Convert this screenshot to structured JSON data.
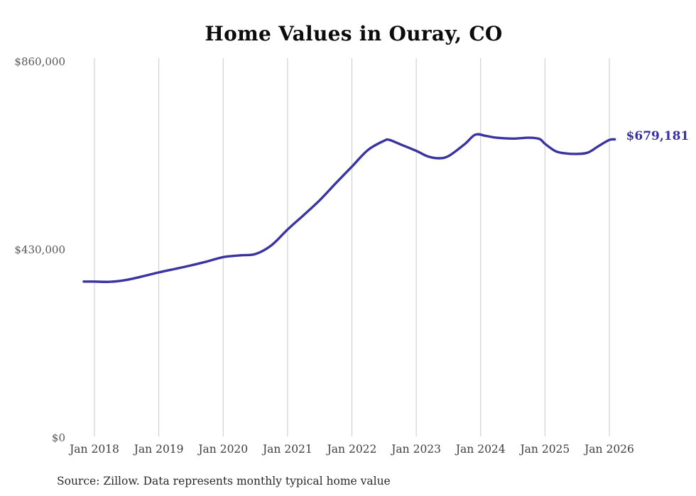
{
  "title": "Home Values in Ouray, CO",
  "source_note": "Source: Zillow. Data represents monthly typical home value",
  "colors": {
    "line": "#3a34a3",
    "grid": "#c9c9c9",
    "end_label": "#38329f",
    "title_text": "#0c0c0c",
    "axis_text": "#3e3e3e"
  },
  "chart_data": {
    "type": "line",
    "title": "Home Values in Ouray, CO",
    "xlabel": "",
    "ylabel": "",
    "ylim": [
      0,
      860000
    ],
    "grid": "vertical-only",
    "legend": "none",
    "x_ticks": [
      "Jan 2018",
      "Jan 2019",
      "Jan 2020",
      "Jan 2021",
      "Jan 2022",
      "Jan 2023",
      "Jan 2024",
      "Jan 2025",
      "Jan 2026"
    ],
    "y_ticks": [
      {
        "label": "$860,000",
        "value": 860000
      },
      {
        "label": "$430,000",
        "value": 430000
      },
      {
        "label": "$0",
        "value": 0
      }
    ],
    "end_label": "$679,181",
    "end_value": 679181,
    "series": [
      {
        "name": "Typical home value",
        "points": [
          [
            "2017-11",
            354000
          ],
          [
            "2018-01",
            354000
          ],
          [
            "2018-04",
            353500
          ],
          [
            "2018-07",
            358000
          ],
          [
            "2018-10",
            366000
          ],
          [
            "2019-01",
            375000
          ],
          [
            "2019-04",
            383000
          ],
          [
            "2019-07",
            391000
          ],
          [
            "2019-10",
            400000
          ],
          [
            "2020-01",
            410000
          ],
          [
            "2020-04",
            414000
          ],
          [
            "2020-07",
            417000
          ],
          [
            "2020-10",
            437000
          ],
          [
            "2021-01",
            473000
          ],
          [
            "2021-04",
            506000
          ],
          [
            "2021-07",
            540000
          ],
          [
            "2021-10",
            579000
          ],
          [
            "2022-01",
            617000
          ],
          [
            "2022-04",
            655000
          ],
          [
            "2022-07",
            676000
          ],
          [
            "2022-08",
            678000
          ],
          [
            "2022-10",
            668000
          ],
          [
            "2023-01",
            653000
          ],
          [
            "2023-03",
            641000
          ],
          [
            "2023-05",
            636000
          ],
          [
            "2023-07",
            641000
          ],
          [
            "2023-10",
            668000
          ],
          [
            "2023-12",
            690000
          ],
          [
            "2024-02",
            687000
          ],
          [
            "2024-04",
            683000
          ],
          [
            "2024-07",
            681000
          ],
          [
            "2024-10",
            683000
          ],
          [
            "2024-12",
            680000
          ],
          [
            "2025-01",
            669000
          ],
          [
            "2025-03",
            652000
          ],
          [
            "2025-05",
            647000
          ],
          [
            "2025-07",
            646000
          ],
          [
            "2025-09",
            649000
          ],
          [
            "2025-11",
            664000
          ],
          [
            "2026-01",
            678000
          ],
          [
            "2026-02",
            679181
          ]
        ]
      }
    ]
  }
}
